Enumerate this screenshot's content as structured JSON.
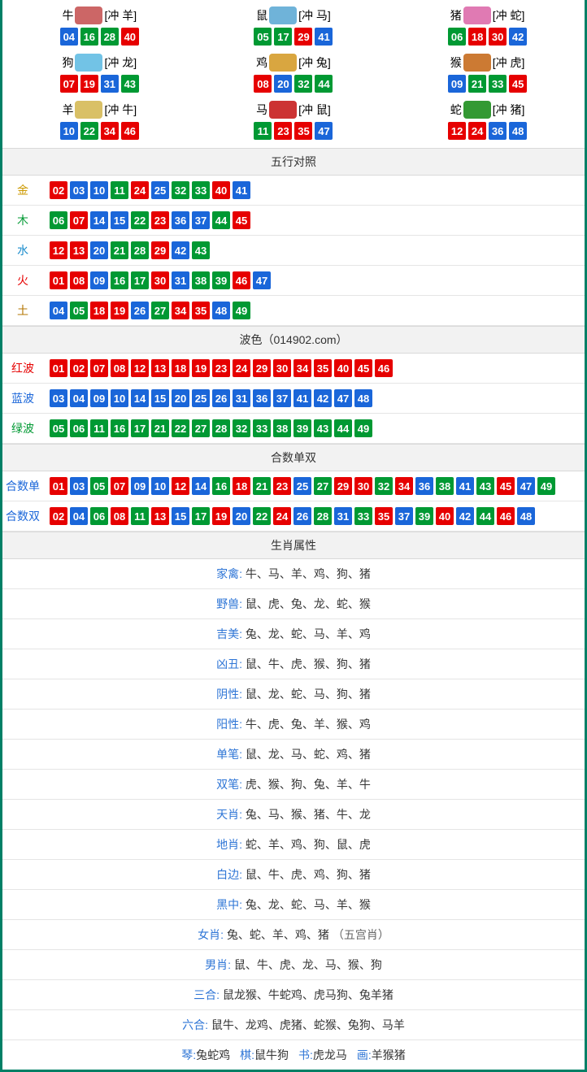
{
  "colors": {
    "red": "#e60000",
    "blue": "#1a66d9",
    "green": "#009933",
    "border": "#008066",
    "header_bg": "#f2f2f2",
    "row_border": "#e5e5e5",
    "label_link": "#2e75d6"
  },
  "ball_color_map_comment": "numbers map to red/blue/green lottery wave colors",
  "waves": {
    "red": [
      "01",
      "02",
      "07",
      "08",
      "12",
      "13",
      "18",
      "19",
      "23",
      "24",
      "29",
      "30",
      "34",
      "35",
      "40",
      "45",
      "46"
    ],
    "blue": [
      "03",
      "04",
      "09",
      "10",
      "14",
      "15",
      "20",
      "25",
      "26",
      "31",
      "36",
      "37",
      "41",
      "42",
      "47",
      "48"
    ],
    "green": [
      "05",
      "06",
      "11",
      "16",
      "17",
      "21",
      "22",
      "27",
      "28",
      "32",
      "33",
      "38",
      "39",
      "43",
      "44",
      "49"
    ]
  },
  "zodiac_grid": [
    {
      "name": "牛",
      "chong": "[冲 羊]",
      "icon": "#cc6666",
      "balls": [
        "04",
        "16",
        "28",
        "40"
      ]
    },
    {
      "name": "鼠",
      "chong": "[冲 马]",
      "icon": "#6fb3d9",
      "balls": [
        "05",
        "17",
        "29",
        "41"
      ]
    },
    {
      "name": "猪",
      "chong": "[冲 蛇]",
      "icon": "#e07ab3",
      "balls": [
        "06",
        "18",
        "30",
        "42"
      ]
    },
    {
      "name": "狗",
      "chong": "[冲 龙]",
      "icon": "#72c3e6",
      "balls": [
        "07",
        "19",
        "31",
        "43"
      ]
    },
    {
      "name": "鸡",
      "chong": "[冲 兔]",
      "icon": "#d9a640",
      "balls": [
        "08",
        "20",
        "32",
        "44"
      ]
    },
    {
      "name": "猴",
      "chong": "[冲 虎]",
      "icon": "#cc7a33",
      "balls": [
        "09",
        "21",
        "33",
        "45"
      ]
    },
    {
      "name": "羊",
      "chong": "[冲 牛]",
      "icon": "#d9c066",
      "balls": [
        "10",
        "22",
        "34",
        "46"
      ]
    },
    {
      "name": "马",
      "chong": "[冲 鼠]",
      "icon": "#cc3333",
      "balls": [
        "11",
        "23",
        "35",
        "47"
      ]
    },
    {
      "name": "蛇",
      "chong": "[冲 猪]",
      "icon": "#339933",
      "balls": [
        "12",
        "24",
        "36",
        "48"
      ]
    }
  ],
  "sections": {
    "wuxing": {
      "title": "五行对照",
      "rows": [
        {
          "label": "金",
          "label_color": "#cc9900",
          "balls": [
            "02",
            "03",
            "10",
            "11",
            "24",
            "25",
            "32",
            "33",
            "40",
            "41"
          ]
        },
        {
          "label": "木",
          "label_color": "#009933",
          "balls": [
            "06",
            "07",
            "14",
            "15",
            "22",
            "23",
            "36",
            "37",
            "44",
            "45"
          ]
        },
        {
          "label": "水",
          "label_color": "#1a8ccc",
          "balls": [
            "12",
            "13",
            "20",
            "21",
            "28",
            "29",
            "42",
            "43"
          ]
        },
        {
          "label": "火",
          "label_color": "#e60000",
          "balls": [
            "01",
            "08",
            "09",
            "16",
            "17",
            "30",
            "31",
            "38",
            "39",
            "46",
            "47"
          ]
        },
        {
          "label": "土",
          "label_color": "#b37400",
          "balls": [
            "04",
            "05",
            "18",
            "19",
            "26",
            "27",
            "34",
            "35",
            "48",
            "49"
          ]
        }
      ]
    },
    "bose": {
      "title": "波色（014902.com）",
      "rows": [
        {
          "label": "红波",
          "label_color": "#e60000",
          "balls": [
            "01",
            "02",
            "07",
            "08",
            "12",
            "13",
            "18",
            "19",
            "23",
            "24",
            "29",
            "30",
            "34",
            "35",
            "40",
            "45",
            "46"
          ]
        },
        {
          "label": "蓝波",
          "label_color": "#1a66d9",
          "balls": [
            "03",
            "04",
            "09",
            "10",
            "14",
            "15",
            "20",
            "25",
            "26",
            "31",
            "36",
            "37",
            "41",
            "42",
            "47",
            "48"
          ]
        },
        {
          "label": "绿波",
          "label_color": "#009933",
          "balls": [
            "05",
            "06",
            "11",
            "16",
            "17",
            "21",
            "22",
            "27",
            "28",
            "32",
            "33",
            "38",
            "39",
            "43",
            "44",
            "49"
          ]
        }
      ]
    },
    "heshu": {
      "title": "合数单双",
      "rows": [
        {
          "label": "合数单",
          "label_color": "#1a66d9",
          "balls": [
            "01",
            "03",
            "05",
            "07",
            "09",
            "10",
            "12",
            "14",
            "16",
            "18",
            "21",
            "23",
            "25",
            "27",
            "29",
            "30",
            "32",
            "34",
            "36",
            "38",
            "41",
            "43",
            "45",
            "47",
            "49"
          ]
        },
        {
          "label": "合数双",
          "label_color": "#1a66d9",
          "balls": [
            "02",
            "04",
            "06",
            "08",
            "11",
            "13",
            "15",
            "17",
            "19",
            "20",
            "22",
            "24",
            "26",
            "28",
            "31",
            "33",
            "35",
            "37",
            "39",
            "40",
            "42",
            "44",
            "46",
            "48"
          ]
        }
      ]
    },
    "shuxing": {
      "title": "生肖属性",
      "rows": [
        {
          "label": "家禽",
          "value": "牛、马、羊、鸡、狗、猪"
        },
        {
          "label": "野兽",
          "value": "鼠、虎、兔、龙、蛇、猴"
        },
        {
          "label": "吉美",
          "value": "兔、龙、蛇、马、羊、鸡"
        },
        {
          "label": "凶丑",
          "value": "鼠、牛、虎、猴、狗、猪"
        },
        {
          "label": "阴性",
          "value": "鼠、龙、蛇、马、狗、猪"
        },
        {
          "label": "阳性",
          "value": "牛、虎、兔、羊、猴、鸡"
        },
        {
          "label": "单笔",
          "value": "鼠、龙、马、蛇、鸡、猪"
        },
        {
          "label": "双笔",
          "value": "虎、猴、狗、兔、羊、牛"
        },
        {
          "label": "天肖",
          "value": "兔、马、猴、猪、牛、龙"
        },
        {
          "label": "地肖",
          "value": "蛇、羊、鸡、狗、鼠、虎"
        },
        {
          "label": "白边",
          "value": "鼠、牛、虎、鸡、狗、猪"
        },
        {
          "label": "黑中",
          "value": "兔、龙、蛇、马、羊、猴"
        },
        {
          "label": "女肖",
          "value": "兔、蛇、羊、鸡、猪",
          "extra": "（五宫肖）"
        },
        {
          "label": "男肖",
          "value": "鼠、牛、虎、龙、马、猴、狗"
        },
        {
          "label": "三合",
          "value": "鼠龙猴、牛蛇鸡、虎马狗、兔羊猪"
        },
        {
          "label": "六合",
          "value": "鼠牛、龙鸡、虎猪、蛇猴、兔狗、马羊"
        }
      ],
      "four_row": [
        {
          "label": "琴",
          "value": "兔蛇鸡"
        },
        {
          "label": "棋",
          "value": "鼠牛狗"
        },
        {
          "label": "书",
          "value": "虎龙马"
        },
        {
          "label": "画",
          "value": "羊猴猪"
        }
      ]
    }
  }
}
